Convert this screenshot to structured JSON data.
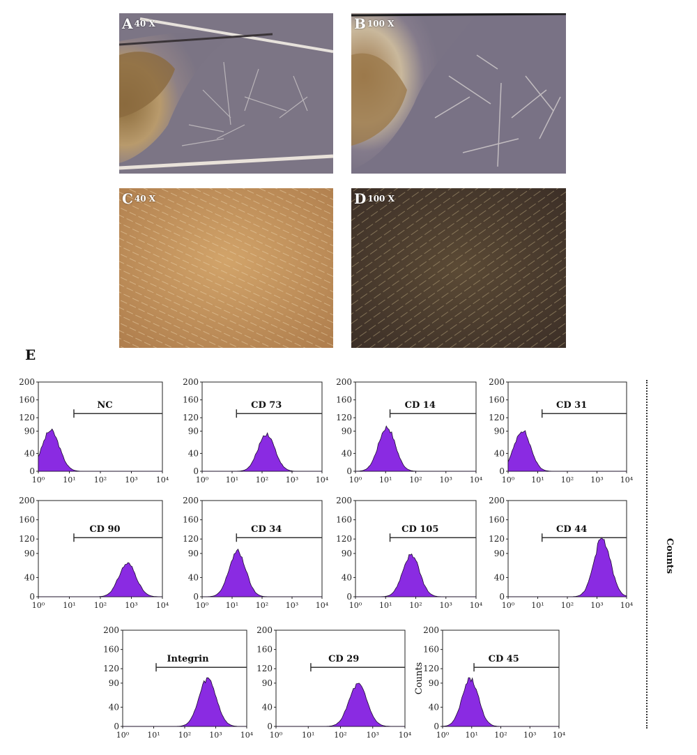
{
  "photo_panels": [
    {
      "letter": "A",
      "magnification": "40 X"
    },
    {
      "letter": "B",
      "magnification": "100 X"
    },
    {
      "letter": "C",
      "magnification": "40 X"
    },
    {
      "letter": "D",
      "magnification": "100 X"
    }
  ],
  "histogram_section_label": "E",
  "right_axis_label": "Counts",
  "chart_data": [
    {
      "type": "area",
      "marker": "NC",
      "ylim": [
        0,
        200
      ],
      "yticks": [
        "0",
        "40",
        "90",
        "120",
        "160",
        "200"
      ],
      "xscale": "log",
      "xlim": [
        1,
        10000
      ],
      "xticks": [
        "10⁰",
        "10¹",
        "10²",
        "10³",
        "10⁴"
      ],
      "gate_start": 14,
      "peak_x": 2.5,
      "peak_y": 92,
      "color": "#8a2be2"
    },
    {
      "type": "area",
      "marker": "CD 73",
      "ylim": [
        0,
        200
      ],
      "yticks": [
        "0",
        "40",
        "90",
        "120",
        "160",
        "200"
      ],
      "xscale": "log",
      "xlim": [
        1,
        10000
      ],
      "xticks": [
        "10⁰",
        "10¹",
        "10²",
        "10³",
        "10⁴"
      ],
      "gate_start": 14,
      "peak_x": 140,
      "peak_y": 85,
      "color": "#8a2be2"
    },
    {
      "type": "area",
      "marker": "CD 14",
      "ylim": [
        0,
        200
      ],
      "yticks": [
        "0",
        "40",
        "90",
        "120",
        "160",
        "200"
      ],
      "xscale": "log",
      "xlim": [
        1,
        10000
      ],
      "xticks": [
        "10⁰",
        "10¹",
        "10²",
        "10³",
        "10⁴"
      ],
      "gate_start": 14,
      "peak_x": 11,
      "peak_y": 100,
      "color": "#8a2be2"
    },
    {
      "type": "area",
      "marker": "CD 31",
      "ylim": [
        0,
        200
      ],
      "yticks": [
        "0",
        "40",
        "90",
        "120",
        "160",
        "200"
      ],
      "xscale": "log",
      "xlim": [
        1,
        10000
      ],
      "xticks": [
        "10⁰",
        "10¹",
        "10²",
        "10³",
        "10⁴"
      ],
      "gate_start": 14,
      "peak_x": 3,
      "peak_y": 93,
      "color": "#8a2be2"
    },
    {
      "type": "area",
      "marker": "CD 90",
      "ylim": [
        0,
        200
      ],
      "yticks": [
        "0",
        "40",
        "90",
        "120",
        "160",
        "200"
      ],
      "xscale": "log",
      "xlim": [
        1,
        10000
      ],
      "xticks": [
        "10⁰",
        "10¹",
        "10²",
        "10³",
        "10⁴"
      ],
      "gate_start": 14,
      "peak_x": 750,
      "peak_y": 70,
      "color": "#8a2be2"
    },
    {
      "type": "area",
      "marker": "CD 34",
      "ylim": [
        0,
        200
      ],
      "yticks": [
        "0",
        "40",
        "90",
        "120",
        "160",
        "200"
      ],
      "xscale": "log",
      "xlim": [
        1,
        10000
      ],
      "xticks": [
        "10⁰",
        "10¹",
        "10²",
        "10³",
        "10⁴"
      ],
      "gate_start": 14,
      "peak_x": 15,
      "peak_y": 95,
      "color": "#8a2be2"
    },
    {
      "type": "area",
      "marker": "CD 105",
      "ylim": [
        0,
        200
      ],
      "yticks": [
        "0",
        "40",
        "90",
        "120",
        "160",
        "200"
      ],
      "xscale": "log",
      "xlim": [
        1,
        10000
      ],
      "xticks": [
        "10⁰",
        "10¹",
        "10²",
        "10³",
        "10⁴"
      ],
      "gate_start": 14,
      "peak_x": 70,
      "peak_y": 88,
      "color": "#8a2be2"
    },
    {
      "type": "area",
      "marker": "CD 44",
      "ylim": [
        0,
        200
      ],
      "yticks": [
        "0",
        "40",
        "90",
        "120",
        "160",
        "200"
      ],
      "xscale": "log",
      "xlim": [
        1,
        10000
      ],
      "xticks": [
        "10⁰",
        "10¹",
        "10²",
        "10³",
        "10⁴"
      ],
      "gate_start": 14,
      "peak_x": 1500,
      "peak_y": 122,
      "color": "#8a2be2"
    },
    {
      "type": "area",
      "marker": "Integrin",
      "ylim": [
        0,
        200
      ],
      "yticks": [
        "0",
        "40",
        "90",
        "120",
        "160",
        "200"
      ],
      "xscale": "log",
      "xlim": [
        1,
        10000
      ],
      "xticks": [
        "10⁰",
        "10¹",
        "10²",
        "10³",
        "10⁴"
      ],
      "gate_start": 12,
      "peak_x": 550,
      "peak_y": 100,
      "color": "#8a2be2"
    },
    {
      "type": "area",
      "marker": "CD 29",
      "ylim": [
        0,
        200
      ],
      "yticks": [
        "0",
        "40",
        "90",
        "120",
        "160",
        "200"
      ],
      "xscale": "log",
      "xlim": [
        1,
        10000
      ],
      "xticks": [
        "10⁰",
        "10¹",
        "10²",
        "10³",
        "10⁴"
      ],
      "gate_start": 12,
      "peak_x": 350,
      "peak_y": 88,
      "color": "#8a2be2"
    },
    {
      "type": "area",
      "marker": "CD 45",
      "ylim": [
        0,
        200
      ],
      "yticks": [
        "0",
        "40",
        "90",
        "120",
        "160",
        "200"
      ],
      "xscale": "log",
      "xlim": [
        1,
        10000
      ],
      "xticks": [
        "10⁰",
        "10¹",
        "10²",
        "10³",
        "10⁴"
      ],
      "gate_start": 12,
      "peak_x": 9,
      "peak_y": 100,
      "ylabel": "Counts",
      "color": "#8a2be2"
    }
  ]
}
